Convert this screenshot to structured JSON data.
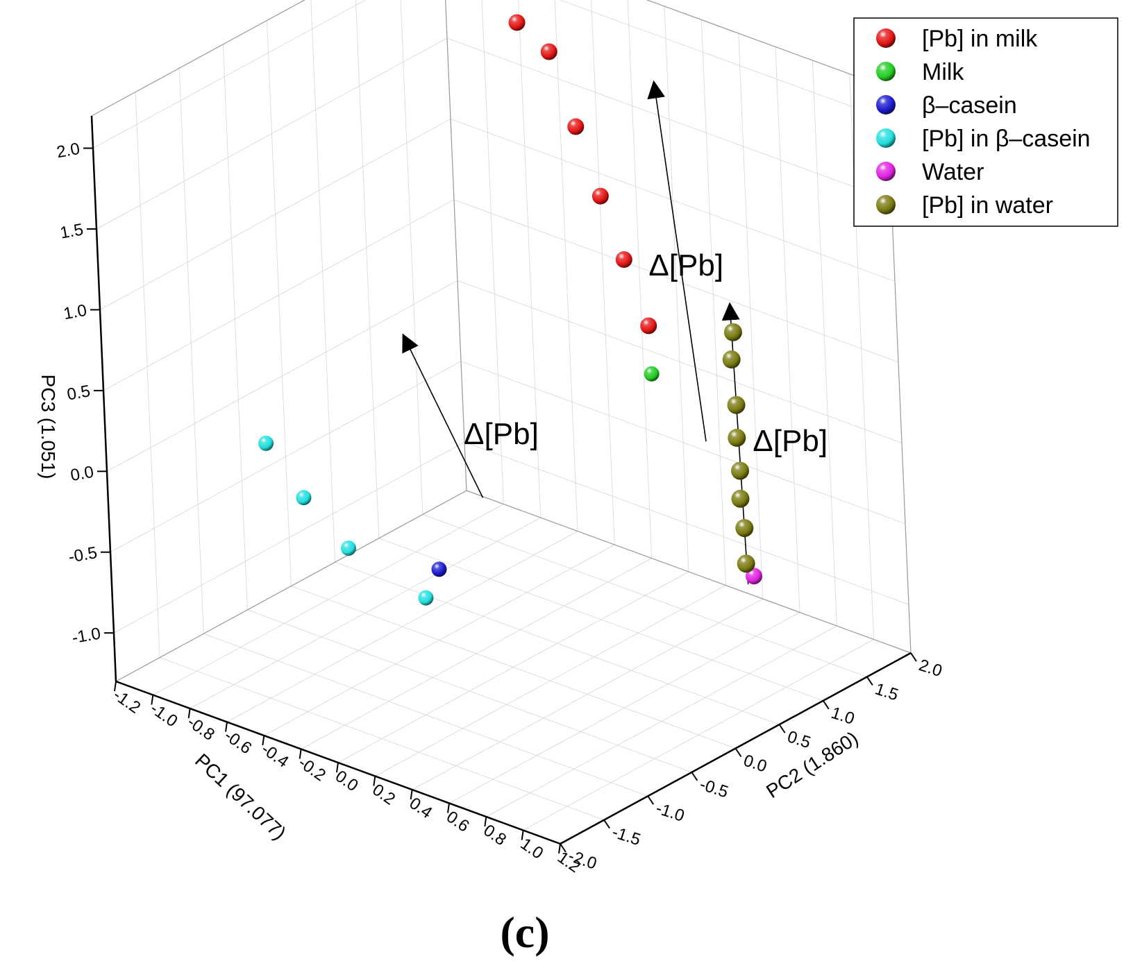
{
  "chart_data": {
    "type": "scatter",
    "projection": "3d",
    "xlabel": "PC1 (97.077)",
    "ylabel": "PC2 (1.860)",
    "zlabel": "PC3 (1.051)",
    "xlim": [
      -1.2,
      1.2
    ],
    "ylim": [
      -2.0,
      2.0
    ],
    "zlim": [
      -1.3,
      2.2
    ],
    "x_ticks": [
      "-1.2",
      "-1.0",
      "-0.8",
      "-0.6",
      "-0.4",
      "-0.2",
      "0.0",
      "0.2",
      "0.4",
      "0.6",
      "0.8",
      "1.0",
      "1.2"
    ],
    "y_ticks": [
      "-2.0",
      "-1.5",
      "-1.0",
      "-0.5",
      "0.0",
      "0.5",
      "1.0",
      "1.5",
      "2.0"
    ],
    "z_ticks": [
      "-1.0",
      "-0.5",
      "0.0",
      "0.5",
      "1.0",
      "1.5",
      "2.0"
    ],
    "grid": true,
    "legend_position": "top-right",
    "series": [
      {
        "name": "[Pb] in milk",
        "color": "#e41414",
        "points": [
          [
            -0.38,
            1.12,
            2.2
          ],
          [
            -0.27,
            1.24,
            2.03
          ],
          [
            -0.2,
            1.36,
            1.56
          ],
          [
            -0.13,
            1.46,
            1.13
          ],
          [
            -0.06,
            1.55,
            0.74
          ],
          [
            0.02,
            1.63,
            0.34
          ]
        ]
      },
      {
        "name": "Milk",
        "color": "#22cc22",
        "points": [
          [
            0.05,
            1.58,
            0.07
          ]
        ]
      },
      {
        "name": "β–casein",
        "color": "#1a1ad0",
        "points": [
          [
            -0.36,
            -0.05,
            -0.83
          ]
        ]
      },
      {
        "name": "[Pb] in β–casein",
        "color": "#22dddd",
        "points": [
          [
            -1.0,
            -0.62,
            -0.15
          ],
          [
            -0.85,
            -0.53,
            -0.45
          ],
          [
            -0.68,
            -0.4,
            -0.73
          ],
          [
            -0.4,
            -0.13,
            -1.0
          ]
        ]
      },
      {
        "name": "Water",
        "color": "#e020e0",
        "points": [
          [
            1.12,
            0.45,
            -0.4
          ]
        ]
      },
      {
        "name": "[Pb] in water",
        "color": "#7a7a10",
        "points": [
          [
            0.93,
            0.72,
            0.95
          ],
          [
            0.92,
            0.71,
            0.78
          ],
          [
            0.96,
            0.66,
            0.53
          ],
          [
            0.97,
            0.63,
            0.34
          ],
          [
            0.99,
            0.61,
            0.15
          ],
          [
            1.0,
            0.58,
            -0.01
          ],
          [
            1.03,
            0.55,
            -0.17
          ],
          [
            1.07,
            0.47,
            -0.35
          ]
        ]
      }
    ],
    "annotations": [
      {
        "text": "Δ[Pb]",
        "from": [
          -0.3,
          0.35,
          -0.48
        ],
        "to": [
          -0.61,
          0.17,
          0.45
        ]
      },
      {
        "text": "Δ[Pb]",
        "from": [
          0.51,
          1.22,
          -0.05
        ],
        "to": [
          0.19,
          1.46,
          1.97
        ]
      },
      {
        "text": "Δ[Pb]",
        "from": [
          1.17,
          0.28,
          -0.38
        ],
        "to": [
          0.83,
          0.9,
          1.03
        ]
      }
    ],
    "caption": "(c)"
  }
}
